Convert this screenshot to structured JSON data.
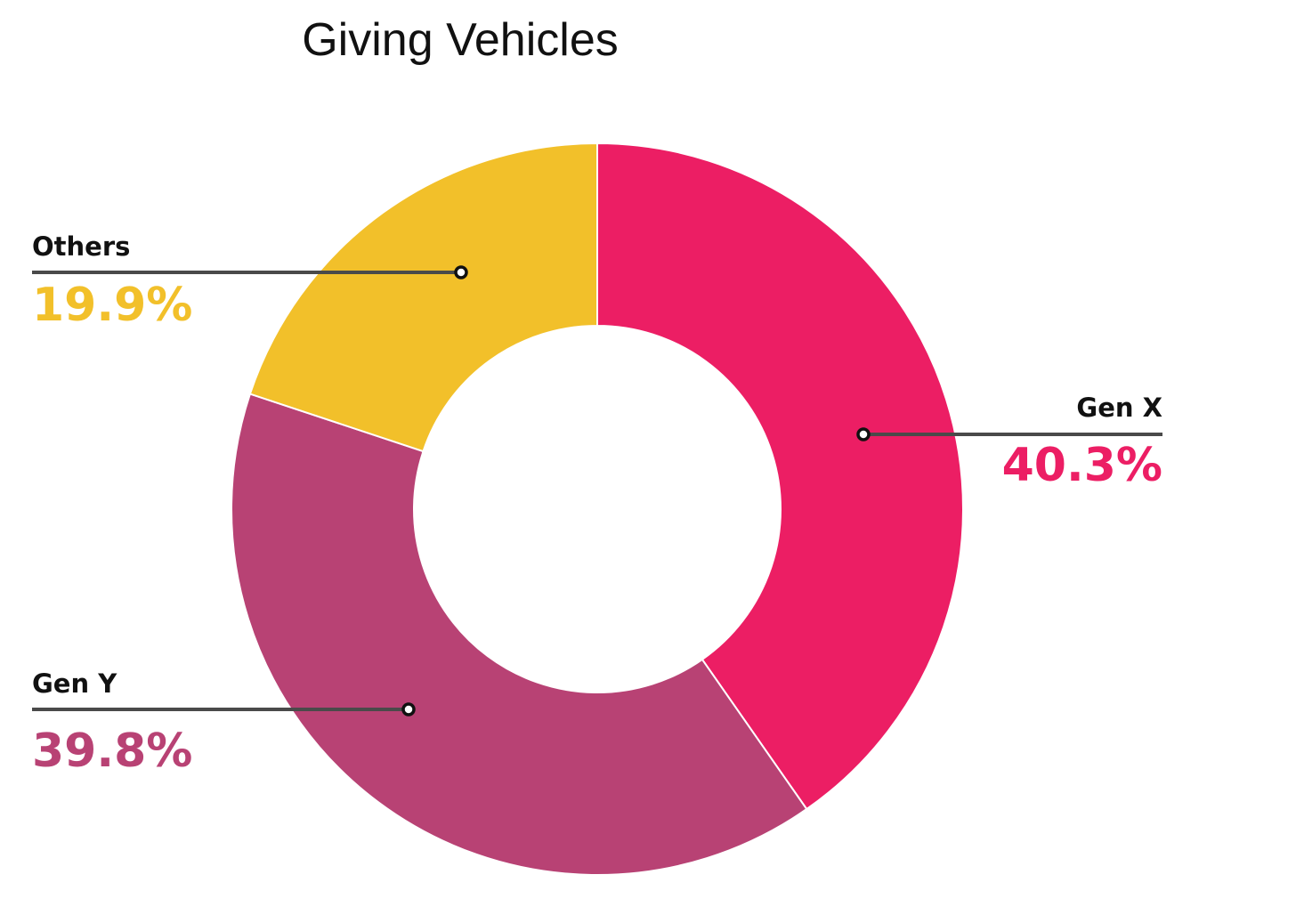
{
  "chart_data": {
    "type": "pie",
    "style": "donut",
    "title": "Giving Vehicles",
    "categories": [
      "Gen X",
      "Gen Y",
      "Others"
    ],
    "values": [
      40.3,
      39.8,
      19.9
    ],
    "value_labels": [
      "40.3%",
      "39.8%",
      "19.9%"
    ],
    "colors": [
      "#ec1e64",
      "#b84274",
      "#f2c02a"
    ],
    "start_angle_deg": 0,
    "direction": "clockwise",
    "legend": "none"
  }
}
